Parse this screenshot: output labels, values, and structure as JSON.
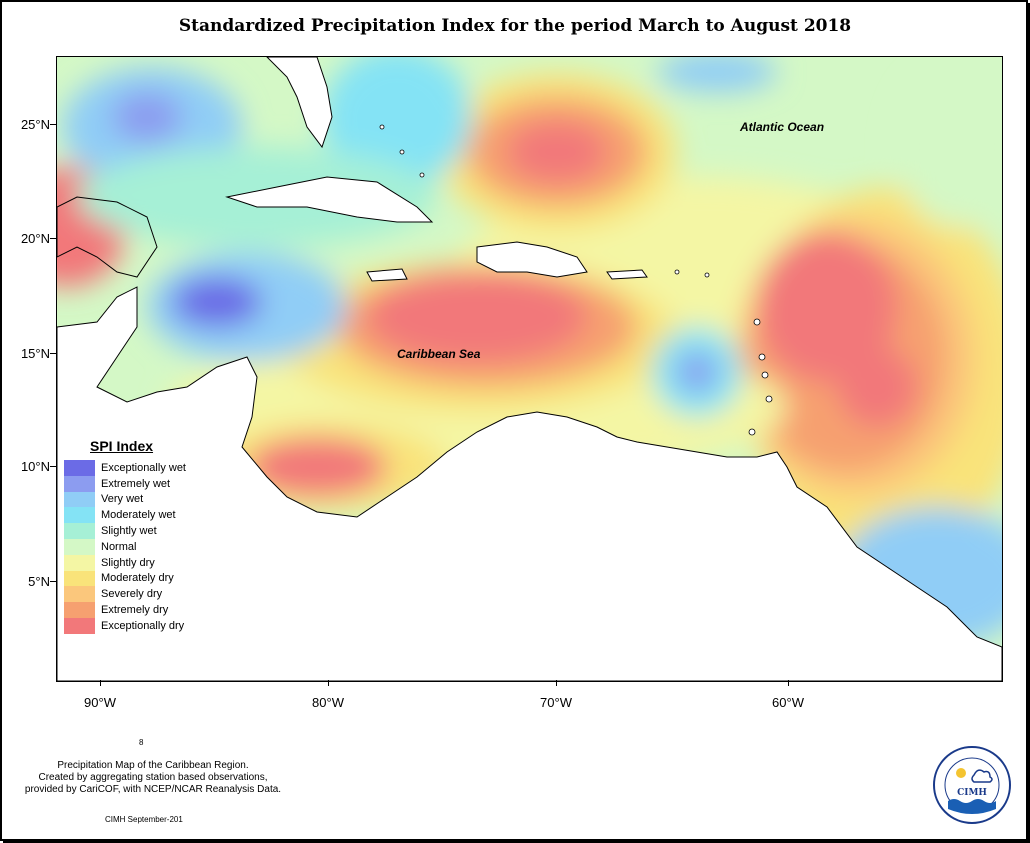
{
  "title": "Standardized Precipitation Index for the period March to August 2018",
  "map": {
    "lat_labels": [
      "25°N",
      "20°N",
      "15°N",
      "10°N",
      "5°N"
    ],
    "lon_labels": [
      "90°W",
      "80°W",
      "70°W",
      "60°W"
    ],
    "oceans": {
      "atlantic": "Atlantic Ocean",
      "caribbean": "Caribbean Sea"
    }
  },
  "legend": {
    "title": "SPI Index",
    "items": [
      {
        "label": "Exceptionally wet",
        "color": "#6b6be6"
      },
      {
        "label": "Extremely wet",
        "color": "#8c9cf0"
      },
      {
        "label": "Very wet",
        "color": "#90cdf6"
      },
      {
        "label": "Moderately wet",
        "color": "#84e3f5"
      },
      {
        "label": "Slightly wet",
        "color": "#a6f0d6"
      },
      {
        "label": "Normal",
        "color": "#d4f8c6"
      },
      {
        "label": "Slightly dry",
        "color": "#f4f6a4"
      },
      {
        "label": "Moderately dry",
        "color": "#f9e37a"
      },
      {
        "label": "Severely dry",
        "color": "#fbc77c"
      },
      {
        "label": "Extremely dry",
        "color": "#f6a070"
      },
      {
        "label": "Exceptionally dry",
        "color": "#f2787a"
      }
    ]
  },
  "footer": {
    "note_line1": "Precipitation Map of the Caribbean Region.",
    "note_line2": "Created by aggregating station based observations,",
    "note_line3": "provided by CariCOF, with NCEP/NCAR Reanalysis Data.",
    "page_marker": "8",
    "credit": "CIMH September-201"
  },
  "logo": {
    "text": "CIMH"
  }
}
